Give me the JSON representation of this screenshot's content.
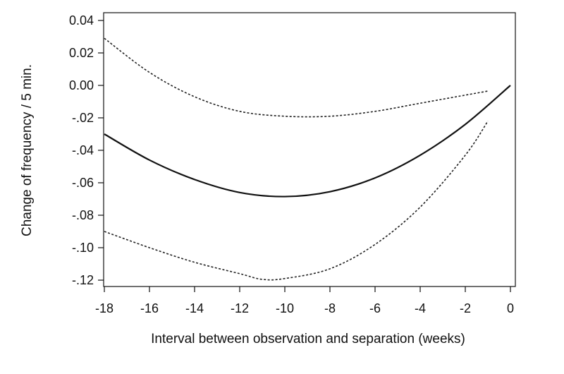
{
  "chart_data": {
    "type": "line",
    "title": "",
    "xlabel": "Interval between observation and separation (weeks)",
    "ylabel": "Change of frequency / 5 min.",
    "xlim": [
      -18,
      0
    ],
    "ylim": [
      -0.12,
      0.04
    ],
    "x_ticks": [
      -18,
      -16,
      -14,
      -12,
      -10,
      -8,
      -6,
      -4,
      -2,
      0
    ],
    "x_tick_labels": [
      "-18",
      "-16",
      "-14",
      "-12",
      "-10",
      "-8",
      "-6",
      "-4",
      "-2",
      "0"
    ],
    "y_ticks": [
      0.04,
      0.02,
      0.0,
      -0.02,
      -0.04,
      -0.06,
      -0.08,
      -0.1,
      -0.12
    ],
    "y_tick_labels": [
      "0.04",
      "0.02",
      "0.00",
      "-.02",
      "-.04",
      "-.06",
      "-.08",
      "-.10",
      "-.12"
    ],
    "grid": false,
    "series": [
      {
        "style": "solid",
        "color": "#111111",
        "x": [
          -18,
          -16,
          -14,
          -12,
          -10,
          -8,
          -6,
          -4,
          -2,
          0
        ],
        "y": [
          -0.03,
          -0.046,
          -0.058,
          -0.066,
          -0.0685,
          -0.0655,
          -0.057,
          -0.043,
          -0.024,
          0.0
        ]
      },
      {
        "style": "dotted",
        "color": "#222222",
        "x": [
          -18,
          -16,
          -14,
          -12,
          -10,
          -8,
          -6,
          -4,
          -2,
          -1
        ],
        "y": [
          0.029,
          0.008,
          -0.007,
          -0.016,
          -0.019,
          -0.019,
          -0.016,
          -0.011,
          -0.006,
          -0.0035
        ]
      },
      {
        "style": "dotted",
        "color": "#222222",
        "x": [
          -18,
          -16,
          -14,
          -12,
          -11,
          -10,
          -8,
          -6,
          -4,
          -2,
          -1
        ],
        "y": [
          -0.09,
          -0.1,
          -0.109,
          -0.116,
          -0.1195,
          -0.119,
          -0.113,
          -0.098,
          -0.075,
          -0.043,
          -0.022
        ]
      }
    ]
  }
}
